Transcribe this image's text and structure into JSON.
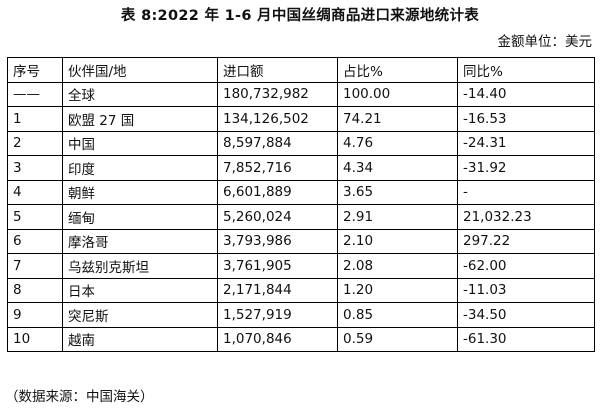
{
  "title": "表 8:2022 年 1-6 月中国丝绸商品进口来源地统计表",
  "unit": "金额单位：美元",
  "table": {
    "headers": [
      "序号",
      "伙伴国/地",
      "进口额",
      "占比%",
      "同比%"
    ],
    "rows": [
      [
        "——",
        "全球",
        "180,732,982",
        "100.00",
        "-14.40"
      ],
      [
        "1",
        "欧盟 27 国",
        "134,126,502",
        "74.21",
        "-16.53"
      ],
      [
        "2",
        "中国",
        "8,597,884",
        "4.76",
        "-24.31"
      ],
      [
        "3",
        "印度",
        "7,852,716",
        "4.34",
        "-31.92"
      ],
      [
        "4",
        "朝鲜",
        "6,601,889",
        "3.65",
        "-"
      ],
      [
        "5",
        "缅甸",
        "5,260,024",
        "2.91",
        "21,032.23"
      ],
      [
        "6",
        "摩洛哥",
        "3,793,986",
        "2.10",
        "297.22"
      ],
      [
        "7",
        "乌兹别克斯坦",
        "3,761,905",
        "2.08",
        "-62.00"
      ],
      [
        "8",
        "日本",
        "2,171,844",
        "1.20",
        "-11.03"
      ],
      [
        "9",
        "突尼斯",
        "1,527,919",
        "0.85",
        "-34.50"
      ],
      [
        "10",
        "越南",
        "1,070,846",
        "0.59",
        "-61.30"
      ]
    ]
  },
  "source": "（数据来源：中国海关）"
}
